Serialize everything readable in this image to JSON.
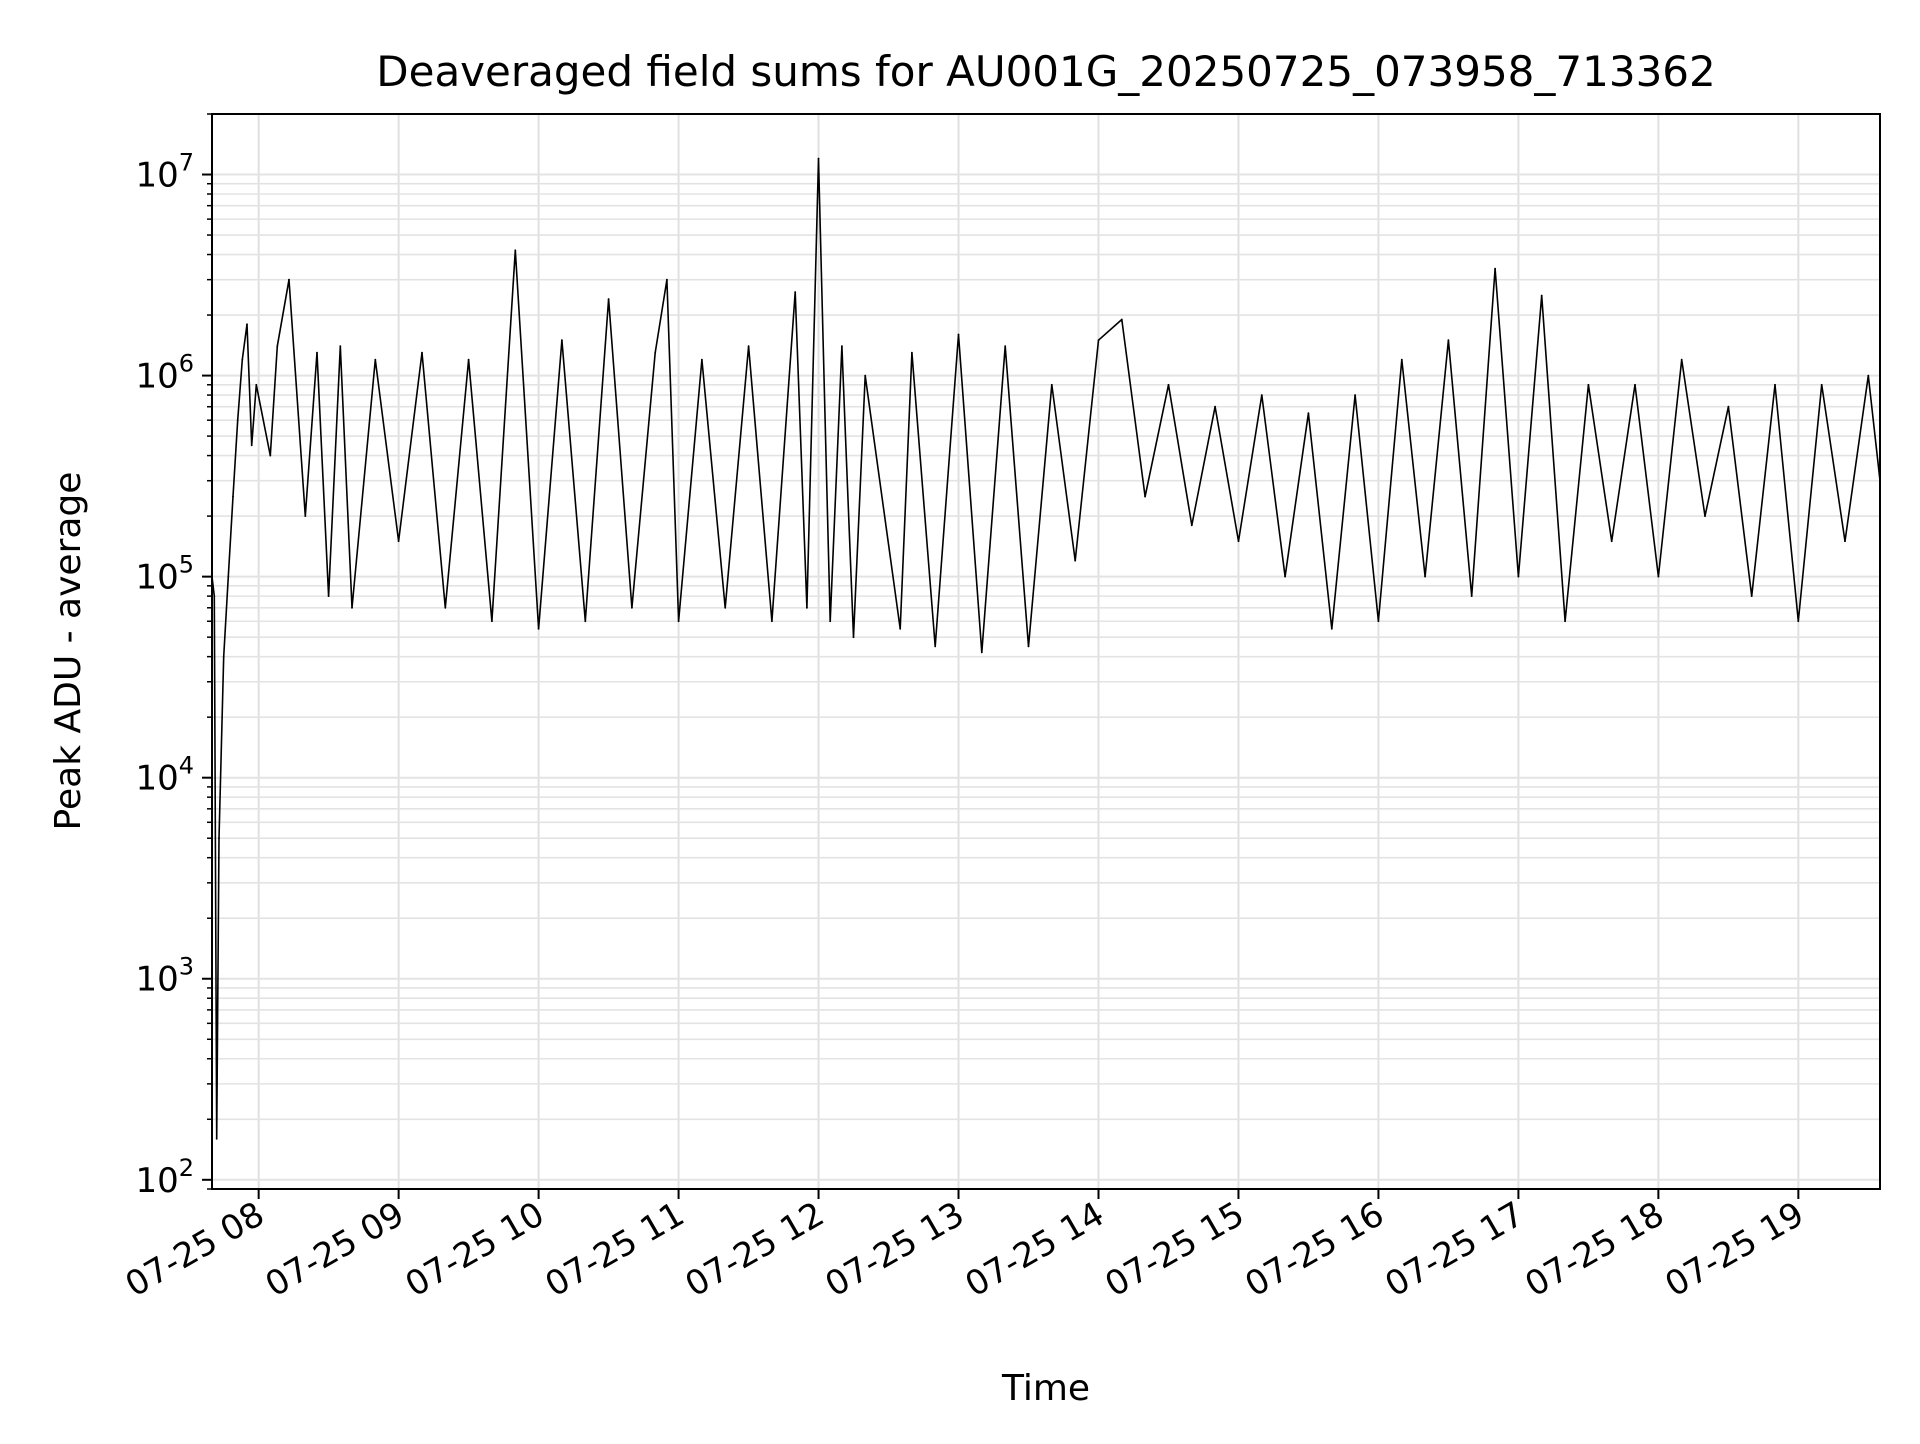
{
  "chart_data": {
    "type": "line",
    "title": "Deaveraged field sums for AU001G_20250725_073958_713362",
    "xlabel": "Time",
    "ylabel": "Peak ADU - average",
    "x_axis": {
      "kind": "datetime",
      "range": [
        "2025-07-25 07:40",
        "2025-07-25 19:35"
      ],
      "tick_values": [
        "2025-07-25 08:00",
        "2025-07-25 09:00",
        "2025-07-25 10:00",
        "2025-07-25 11:00",
        "2025-07-25 12:00",
        "2025-07-25 13:00",
        "2025-07-25 14:00",
        "2025-07-25 15:00",
        "2025-07-25 16:00",
        "2025-07-25 17:00",
        "2025-07-25 18:00",
        "2025-07-25 19:00"
      ],
      "tick_labels": [
        "07-25 08",
        "07-25 09",
        "07-25 10",
        "07-25 11",
        "07-25 12",
        "07-25 13",
        "07-25 14",
        "07-25 15",
        "07-25 16",
        "07-25 17",
        "07-25 18",
        "07-25 19"
      ]
    },
    "y_axis": {
      "scale": "log",
      "range": [
        90,
        20000000
      ],
      "ticks": [
        {
          "value": 100,
          "base": "10",
          "exp": "2"
        },
        {
          "value": 1000,
          "base": "10",
          "exp": "3"
        },
        {
          "value": 10000,
          "base": "10",
          "exp": "4"
        },
        {
          "value": 100000,
          "base": "10",
          "exp": "5"
        },
        {
          "value": 1000000,
          "base": "10",
          "exp": "6"
        },
        {
          "value": 10000000,
          "base": "10",
          "exp": "7"
        }
      ]
    },
    "grid": true,
    "series": [
      {
        "color": "#000000",
        "points": [
          [
            "2025-07-25 07:40",
            100000
          ],
          [
            "2025-07-25 07:41",
            80000
          ],
          [
            "2025-07-25 07:42",
            160
          ],
          [
            "2025-07-25 07:43",
            5000
          ],
          [
            "2025-07-25 07:45",
            40000
          ],
          [
            "2025-07-25 07:47",
            100000
          ],
          [
            "2025-07-25 07:49",
            250000
          ],
          [
            "2025-07-25 07:51",
            600000
          ],
          [
            "2025-07-25 07:53",
            1200000
          ],
          [
            "2025-07-25 07:55",
            1800000
          ],
          [
            "2025-07-25 07:57",
            450000
          ],
          [
            "2025-07-25 07:59",
            900000
          ],
          [
            "2025-07-25 08:05",
            400000
          ],
          [
            "2025-07-25 08:08",
            1400000
          ],
          [
            "2025-07-25 08:13",
            3000000
          ],
          [
            "2025-07-25 08:20",
            200000
          ],
          [
            "2025-07-25 08:25",
            1300000
          ],
          [
            "2025-07-25 08:30",
            80000
          ],
          [
            "2025-07-25 08:35",
            1400000
          ],
          [
            "2025-07-25 08:40",
            70000
          ],
          [
            "2025-07-25 08:50",
            1200000
          ],
          [
            "2025-07-25 09:00",
            150000
          ],
          [
            "2025-07-25 09:10",
            1300000
          ],
          [
            "2025-07-25 09:20",
            70000
          ],
          [
            "2025-07-25 09:30",
            1200000
          ],
          [
            "2025-07-25 09:40",
            60000
          ],
          [
            "2025-07-25 09:50",
            4200000
          ],
          [
            "2025-07-25 10:00",
            55000
          ],
          [
            "2025-07-25 10:10",
            1500000
          ],
          [
            "2025-07-25 10:20",
            60000
          ],
          [
            "2025-07-25 10:30",
            2400000
          ],
          [
            "2025-07-25 10:40",
            70000
          ],
          [
            "2025-07-25 10:50",
            1300000
          ],
          [
            "2025-07-25 10:55",
            3000000
          ],
          [
            "2025-07-25 11:00",
            60000
          ],
          [
            "2025-07-25 11:10",
            1200000
          ],
          [
            "2025-07-25 11:20",
            70000
          ],
          [
            "2025-07-25 11:30",
            1400000
          ],
          [
            "2025-07-25 11:40",
            60000
          ],
          [
            "2025-07-25 11:50",
            2600000
          ],
          [
            "2025-07-25 11:55",
            70000
          ],
          [
            "2025-07-25 12:00",
            12000000
          ],
          [
            "2025-07-25 12:05",
            60000
          ],
          [
            "2025-07-25 12:10",
            1400000
          ],
          [
            "2025-07-25 12:15",
            50000
          ],
          [
            "2025-07-25 12:20",
            1000000
          ],
          [
            "2025-07-25 12:35",
            55000
          ],
          [
            "2025-07-25 12:40",
            1300000
          ],
          [
            "2025-07-25 12:50",
            45000
          ],
          [
            "2025-07-25 13:00",
            1600000
          ],
          [
            "2025-07-25 13:10",
            42000
          ],
          [
            "2025-07-25 13:20",
            1400000
          ],
          [
            "2025-07-25 13:30",
            45000
          ],
          [
            "2025-07-25 13:40",
            900000
          ],
          [
            "2025-07-25 13:50",
            120000
          ],
          [
            "2025-07-25 14:00",
            1500000
          ],
          [
            "2025-07-25 14:10",
            1900000
          ],
          [
            "2025-07-25 14:20",
            250000
          ],
          [
            "2025-07-25 14:30",
            900000
          ],
          [
            "2025-07-25 14:40",
            180000
          ],
          [
            "2025-07-25 14:50",
            700000
          ],
          [
            "2025-07-25 15:00",
            150000
          ],
          [
            "2025-07-25 15:10",
            800000
          ],
          [
            "2025-07-25 15:20",
            100000
          ],
          [
            "2025-07-25 15:30",
            650000
          ],
          [
            "2025-07-25 15:40",
            55000
          ],
          [
            "2025-07-25 15:50",
            800000
          ],
          [
            "2025-07-25 16:00",
            60000
          ],
          [
            "2025-07-25 16:10",
            1200000
          ],
          [
            "2025-07-25 16:20",
            100000
          ],
          [
            "2025-07-25 16:30",
            1500000
          ],
          [
            "2025-07-25 16:40",
            80000
          ],
          [
            "2025-07-25 16:50",
            3400000
          ],
          [
            "2025-07-25 17:00",
            100000
          ],
          [
            "2025-07-25 17:10",
            2500000
          ],
          [
            "2025-07-25 17:20",
            60000
          ],
          [
            "2025-07-25 17:30",
            900000
          ],
          [
            "2025-07-25 17:40",
            150000
          ],
          [
            "2025-07-25 17:50",
            900000
          ],
          [
            "2025-07-25 18:00",
            100000
          ],
          [
            "2025-07-25 18:10",
            1200000
          ],
          [
            "2025-07-25 18:20",
            200000
          ],
          [
            "2025-07-25 18:30",
            700000
          ],
          [
            "2025-07-25 18:40",
            80000
          ],
          [
            "2025-07-25 18:50",
            900000
          ],
          [
            "2025-07-25 19:00",
            60000
          ],
          [
            "2025-07-25 19:10",
            900000
          ],
          [
            "2025-07-25 19:20",
            150000
          ],
          [
            "2025-07-25 19:30",
            1000000
          ],
          [
            "2025-07-25 19:35",
            300000
          ]
        ]
      }
    ]
  }
}
